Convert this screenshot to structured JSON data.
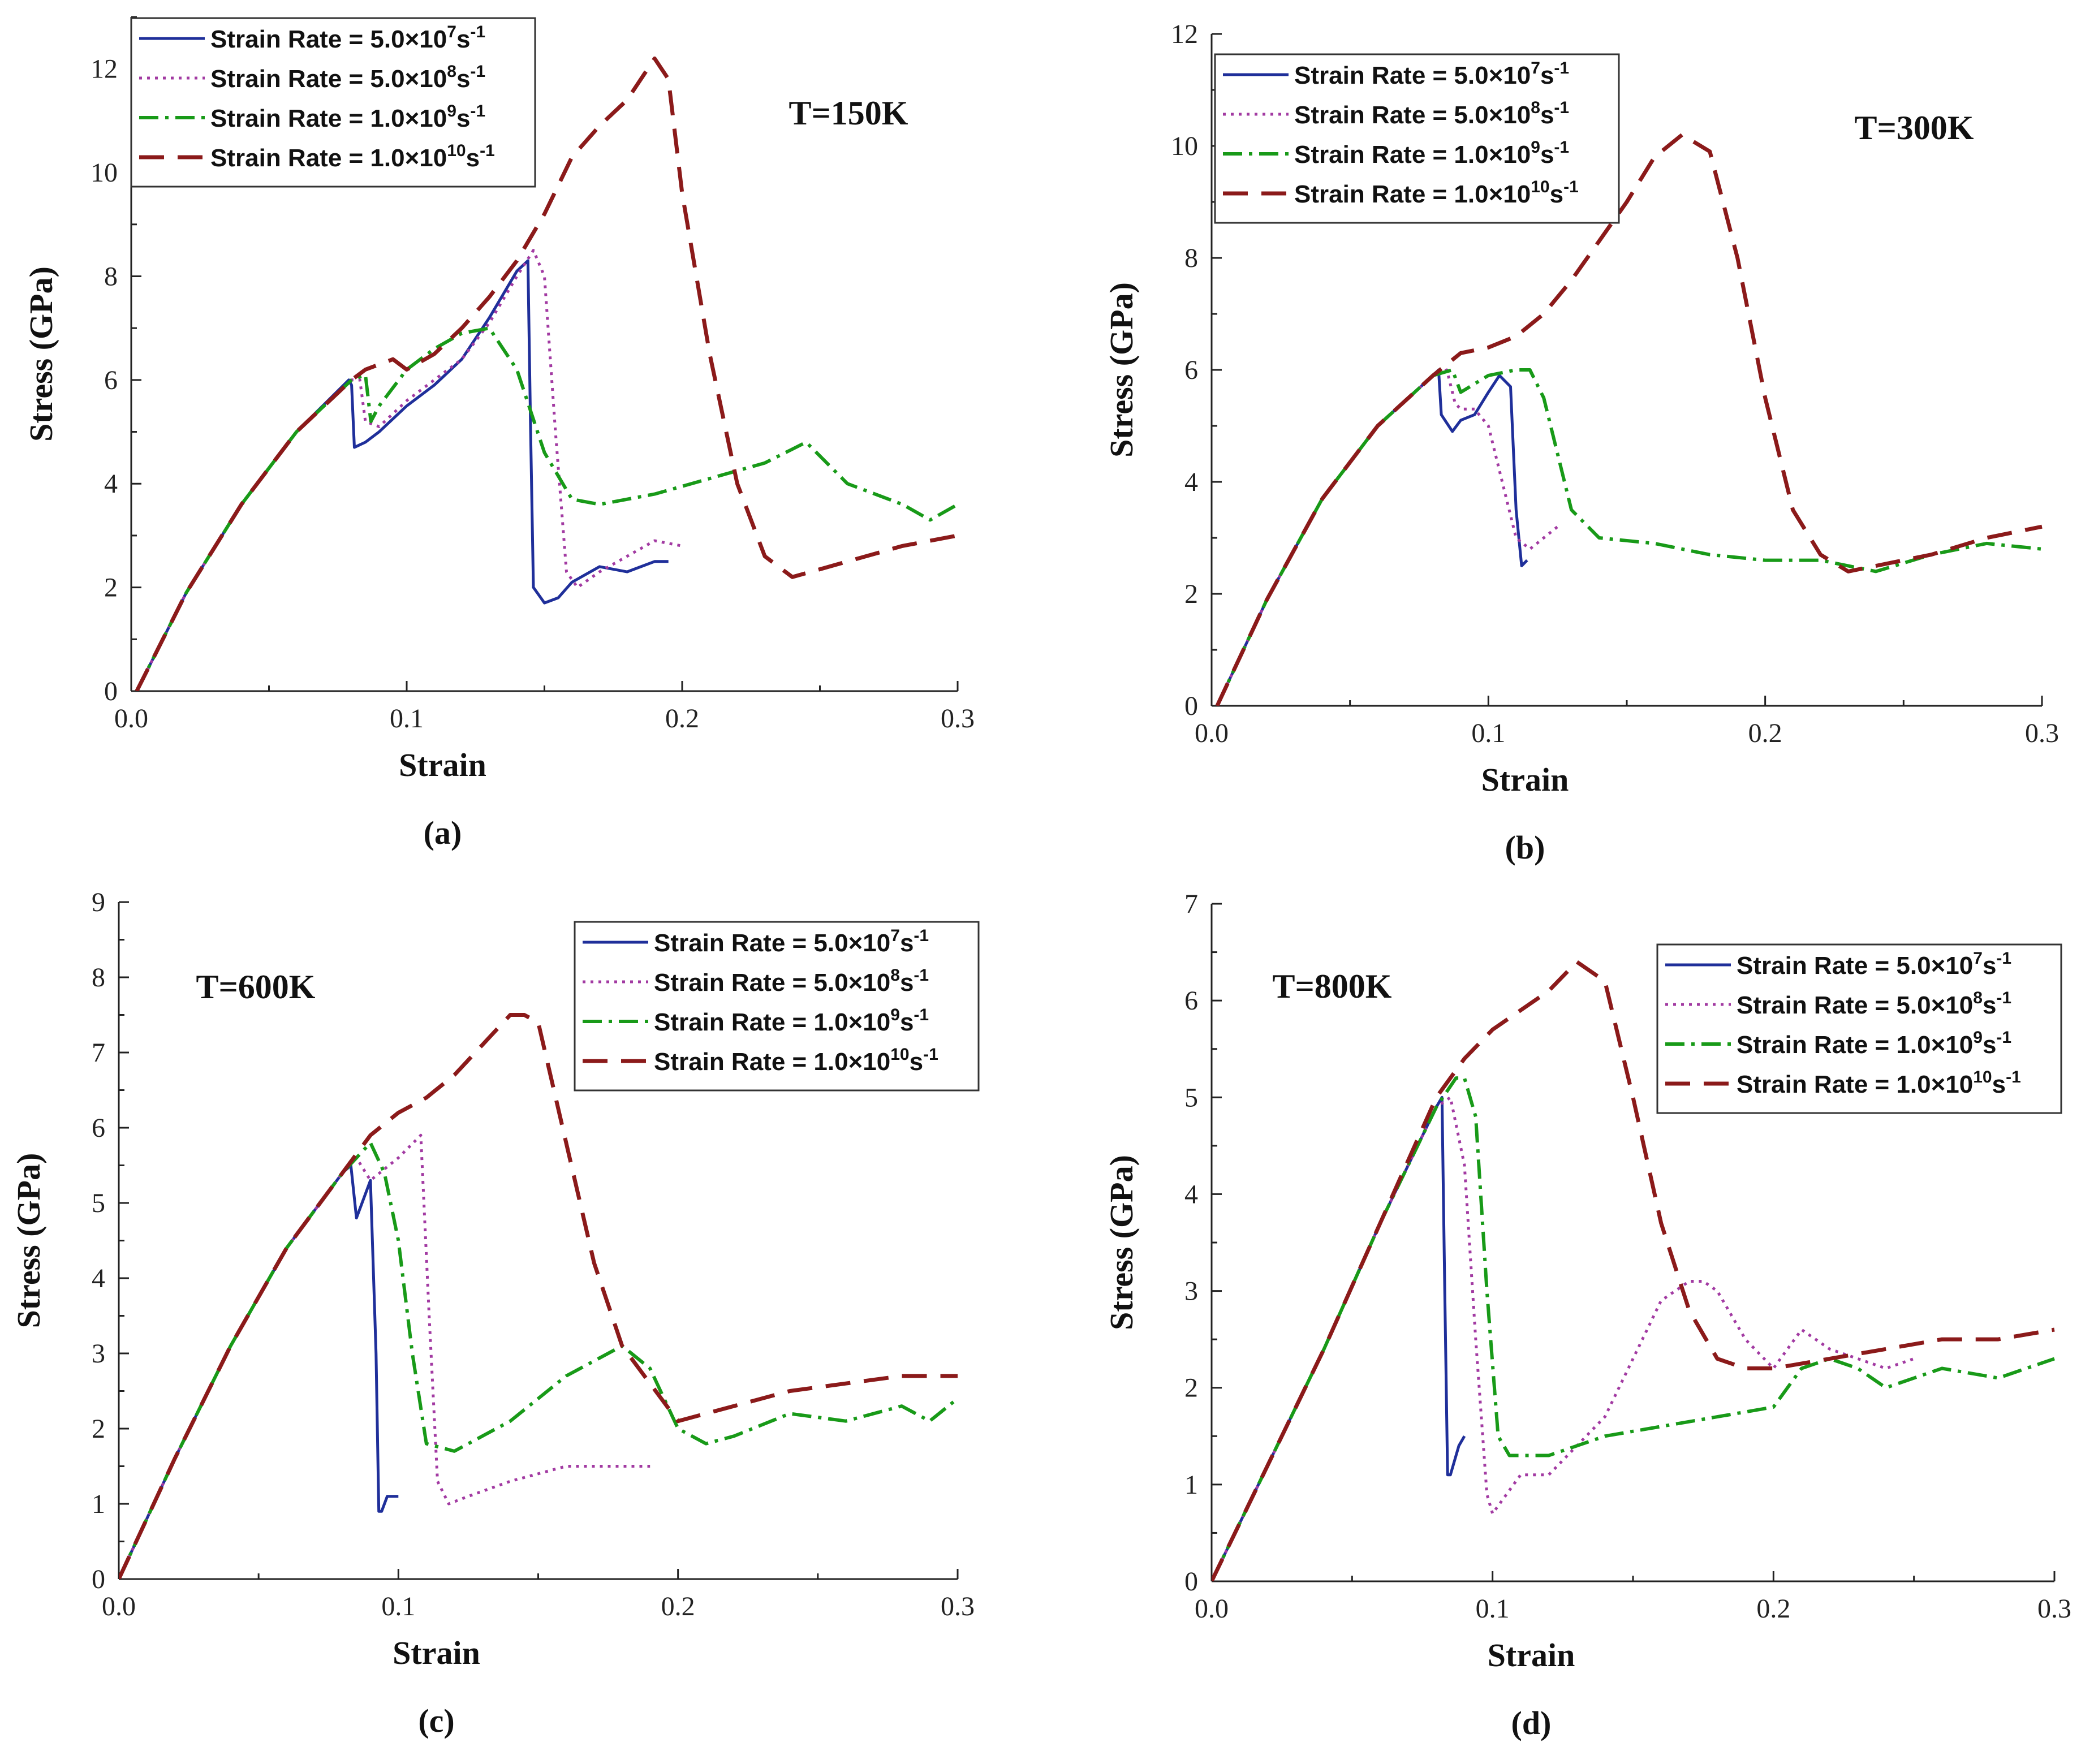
{
  "colors": {
    "r1": "#1f2f9a",
    "r2": "#a23aa2",
    "r3": "#189a18",
    "r4": "#8b1a1a"
  },
  "legend_entries": [
    {
      "prefix": "Strain Rate = 5.0×10",
      "exp": "7",
      "unit": "s",
      "unit_exp": "-1"
    },
    {
      "prefix": "Strain Rate = 5.0×10",
      "exp": "8",
      "unit": "s",
      "unit_exp": "-1"
    },
    {
      "prefix": "Strain Rate = 1.0×10",
      "exp": "9",
      "unit": "s",
      "unit_exp": "-1"
    },
    {
      "prefix": "Strain Rate = 1.0×10",
      "exp": "10",
      "unit": "s",
      "unit_exp": "-1"
    }
  ],
  "chart_data": [
    {
      "type": "line",
      "panel_label": "(a)",
      "temperature_label": "T=150K",
      "xlabel": "Strain",
      "ylabel": "Stress (GPa)",
      "xlim": [
        0.0,
        0.3
      ],
      "ylim": [
        0,
        13
      ],
      "xticks": [
        "0.0",
        "0.1",
        "0.2",
        "0.3"
      ],
      "yticks": [
        "0",
        "2",
        "4",
        "6",
        "8",
        "10",
        "12"
      ],
      "legend_position": "top-left",
      "series": [
        {
          "name": "Strain Rate = 5.0×10⁷s⁻¹",
          "x": [
            0.002,
            0.02,
            0.04,
            0.06,
            0.079,
            0.08,
            0.081,
            0.085,
            0.09,
            0.1,
            0.11,
            0.12,
            0.13,
            0.14,
            0.144,
            0.145,
            0.146,
            0.15,
            0.155,
            0.16,
            0.17,
            0.18,
            0.19,
            0.195
          ],
          "y": [
            0,
            1.9,
            3.6,
            5.0,
            6.0,
            5.9,
            4.7,
            4.8,
            5.0,
            5.5,
            5.9,
            6.4,
            7.2,
            8.1,
            8.3,
            5.0,
            2.0,
            1.7,
            1.8,
            2.1,
            2.4,
            2.3,
            2.5,
            2.5
          ]
        },
        {
          "name": "Strain Rate = 5.0×10⁸s⁻¹",
          "x": [
            0.002,
            0.02,
            0.04,
            0.06,
            0.08,
            0.083,
            0.085,
            0.09,
            0.1,
            0.11,
            0.12,
            0.13,
            0.14,
            0.146,
            0.15,
            0.154,
            0.158,
            0.162,
            0.17,
            0.18,
            0.19,
            0.2
          ],
          "y": [
            0,
            1.9,
            3.6,
            5.0,
            6.0,
            6.0,
            5.2,
            5.1,
            5.6,
            6.0,
            6.4,
            7.1,
            8.0,
            8.5,
            8.0,
            5.0,
            2.3,
            2.0,
            2.3,
            2.6,
            2.9,
            2.8
          ]
        },
        {
          "name": "Strain Rate = 1.0×10⁹s⁻¹",
          "x": [
            0.002,
            0.02,
            0.04,
            0.06,
            0.08,
            0.085,
            0.087,
            0.09,
            0.1,
            0.11,
            0.12,
            0.13,
            0.14,
            0.15,
            0.16,
            0.17,
            0.19,
            0.21,
            0.23,
            0.245,
            0.26,
            0.28,
            0.29,
            0.3
          ],
          "y": [
            0,
            1.9,
            3.6,
            5.0,
            6.0,
            6.1,
            5.2,
            5.5,
            6.2,
            6.6,
            6.9,
            7.0,
            6.2,
            4.6,
            3.7,
            3.6,
            3.8,
            4.1,
            4.4,
            4.8,
            4.0,
            3.6,
            3.3,
            3.6
          ]
        },
        {
          "name": "Strain Rate = 1.0×10¹⁰s⁻¹",
          "x": [
            0.002,
            0.02,
            0.04,
            0.06,
            0.08,
            0.085,
            0.095,
            0.1,
            0.11,
            0.12,
            0.13,
            0.14,
            0.15,
            0.16,
            0.17,
            0.18,
            0.19,
            0.195,
            0.2,
            0.21,
            0.22,
            0.23,
            0.24,
            0.26,
            0.28,
            0.3
          ],
          "y": [
            0,
            1.9,
            3.6,
            5.0,
            6.0,
            6.2,
            6.4,
            6.2,
            6.5,
            7.0,
            7.6,
            8.3,
            9.2,
            10.3,
            10.9,
            11.4,
            12.2,
            11.8,
            9.6,
            6.5,
            4.0,
            2.6,
            2.2,
            2.5,
            2.8,
            3.0
          ]
        }
      ]
    },
    {
      "type": "line",
      "panel_label": "(b)",
      "temperature_label": "T=300K",
      "xlabel": "Strain",
      "ylabel": "Stress (GPa)",
      "xlim": [
        0.0,
        0.3
      ],
      "ylim": [
        0,
        12
      ],
      "xticks": [
        "0.0",
        "0.1",
        "0.2",
        "0.3"
      ],
      "yticks": [
        "0",
        "2",
        "4",
        "6",
        "8",
        "10",
        "12"
      ],
      "legend_position": "top-left",
      "series": [
        {
          "name": "Strain Rate = 5.0×10⁷s⁻¹",
          "x": [
            0.002,
            0.02,
            0.04,
            0.06,
            0.08,
            0.082,
            0.083,
            0.087,
            0.09,
            0.095,
            0.1,
            0.104,
            0.108,
            0.11,
            0.112,
            0.114
          ],
          "y": [
            0,
            1.9,
            3.7,
            5.0,
            5.9,
            6.0,
            5.2,
            4.9,
            5.1,
            5.2,
            5.6,
            5.9,
            5.7,
            3.5,
            2.5,
            2.6
          ]
        },
        {
          "name": "Strain Rate = 5.0×10⁸s⁻¹",
          "x": [
            0.002,
            0.02,
            0.04,
            0.06,
            0.08,
            0.085,
            0.088,
            0.09,
            0.095,
            0.1,
            0.104,
            0.11,
            0.115,
            0.12,
            0.125
          ],
          "y": [
            0,
            1.9,
            3.7,
            5.0,
            5.9,
            6.0,
            5.4,
            5.3,
            5.3,
            5.0,
            4.2,
            3.0,
            2.8,
            3.0,
            3.2
          ]
        },
        {
          "name": "Strain Rate = 1.0×10⁹s⁻¹",
          "x": [
            0.002,
            0.02,
            0.04,
            0.06,
            0.08,
            0.087,
            0.09,
            0.1,
            0.11,
            0.115,
            0.12,
            0.13,
            0.14,
            0.16,
            0.18,
            0.2,
            0.22,
            0.24,
            0.26,
            0.28,
            0.3
          ],
          "y": [
            0,
            1.9,
            3.7,
            5.0,
            5.9,
            6.0,
            5.6,
            5.9,
            6.0,
            6.0,
            5.5,
            3.5,
            3.0,
            2.9,
            2.7,
            2.6,
            2.6,
            2.4,
            2.7,
            2.9,
            2.8
          ]
        },
        {
          "name": "Strain Rate = 1.0×10¹⁰s⁻¹",
          "x": [
            0.002,
            0.02,
            0.04,
            0.06,
            0.08,
            0.09,
            0.1,
            0.11,
            0.12,
            0.13,
            0.14,
            0.15,
            0.16,
            0.17,
            0.18,
            0.19,
            0.2,
            0.21,
            0.22,
            0.23,
            0.24,
            0.26,
            0.28,
            0.3
          ],
          "y": [
            0,
            1.9,
            3.7,
            5.0,
            5.9,
            6.3,
            6.4,
            6.6,
            7.0,
            7.6,
            8.3,
            9.0,
            9.8,
            10.2,
            9.9,
            8.0,
            5.5,
            3.5,
            2.7,
            2.4,
            2.5,
            2.7,
            3.0,
            3.2
          ]
        }
      ]
    },
    {
      "type": "line",
      "panel_label": "(c)",
      "temperature_label": "T=600K",
      "xlabel": "Strain",
      "ylabel": "Stress (GPa)",
      "xlim": [
        0.0,
        0.3
      ],
      "ylim": [
        0,
        9
      ],
      "xticks": [
        "0.0",
        "0.1",
        "0.2",
        "0.3"
      ],
      "yticks": [
        "0",
        "1",
        "2",
        "3",
        "4",
        "5",
        "6",
        "7",
        "8",
        "9"
      ],
      "legend_position": "top-right",
      "series": [
        {
          "name": "Strain Rate = 5.0×10⁷s⁻¹",
          "x": [
            0.0,
            0.02,
            0.04,
            0.06,
            0.08,
            0.083,
            0.085,
            0.09,
            0.092,
            0.093,
            0.094,
            0.096,
            0.1
          ],
          "y": [
            0,
            1.6,
            3.1,
            4.4,
            5.4,
            5.5,
            4.8,
            5.3,
            3.0,
            0.9,
            0.9,
            1.1,
            1.1
          ]
        },
        {
          "name": "Strain Rate = 5.0×10⁸s⁻¹",
          "x": [
            0.0,
            0.02,
            0.04,
            0.06,
            0.08,
            0.085,
            0.09,
            0.1,
            0.108,
            0.111,
            0.114,
            0.118,
            0.125,
            0.14,
            0.16,
            0.18,
            0.19
          ],
          "y": [
            0,
            1.6,
            3.1,
            4.4,
            5.4,
            5.6,
            5.3,
            5.6,
            5.9,
            3.5,
            1.3,
            1.0,
            1.1,
            1.3,
            1.5,
            1.5,
            1.5
          ]
        },
        {
          "name": "Strain Rate = 1.0×10⁹s⁻¹",
          "x": [
            0.0,
            0.02,
            0.04,
            0.06,
            0.08,
            0.09,
            0.095,
            0.1,
            0.105,
            0.11,
            0.12,
            0.13,
            0.14,
            0.15,
            0.16,
            0.17,
            0.18,
            0.19,
            0.2,
            0.21,
            0.22,
            0.24,
            0.26,
            0.28,
            0.29,
            0.3
          ],
          "y": [
            0,
            1.6,
            3.1,
            4.4,
            5.4,
            5.8,
            5.4,
            4.5,
            3.0,
            1.8,
            1.7,
            1.9,
            2.1,
            2.4,
            2.7,
            2.9,
            3.1,
            2.8,
            2.0,
            1.8,
            1.9,
            2.2,
            2.1,
            2.3,
            2.1,
            2.4
          ]
        },
        {
          "name": "Strain Rate = 1.0×10¹⁰s⁻¹",
          "x": [
            0.0,
            0.02,
            0.04,
            0.06,
            0.08,
            0.09,
            0.1,
            0.11,
            0.12,
            0.13,
            0.14,
            0.145,
            0.15,
            0.16,
            0.17,
            0.18,
            0.19,
            0.2,
            0.22,
            0.24,
            0.26,
            0.28,
            0.3
          ],
          "y": [
            0,
            1.6,
            3.1,
            4.4,
            5.4,
            5.9,
            6.2,
            6.4,
            6.7,
            7.1,
            7.5,
            7.5,
            7.4,
            5.8,
            4.2,
            3.1,
            2.6,
            2.1,
            2.3,
            2.5,
            2.6,
            2.7,
            2.7
          ]
        }
      ]
    },
    {
      "type": "line",
      "panel_label": "(d)",
      "temperature_label": "T=800K",
      "xlabel": "Strain",
      "ylabel": "Stress (GPa)",
      "xlim": [
        0.0,
        0.3
      ],
      "ylim": [
        0,
        7
      ],
      "xticks": [
        "0.0",
        "0.1",
        "0.2",
        "0.3"
      ],
      "yticks": [
        "0",
        "1",
        "2",
        "3",
        "4",
        "5",
        "6",
        "7"
      ],
      "legend_position": "top-right",
      "series": [
        {
          "name": "Strain Rate = 5.0×10⁷s⁻¹",
          "x": [
            0.0,
            0.02,
            0.04,
            0.06,
            0.08,
            0.082,
            0.083,
            0.084,
            0.085,
            0.088,
            0.09
          ],
          "y": [
            0,
            1.2,
            2.4,
            3.7,
            4.9,
            5.0,
            3.0,
            1.1,
            1.1,
            1.4,
            1.5
          ]
        },
        {
          "name": "Strain Rate = 5.0×10⁸s⁻¹",
          "x": [
            0.0,
            0.02,
            0.04,
            0.06,
            0.08,
            0.085,
            0.09,
            0.094,
            0.098,
            0.1,
            0.105,
            0.11,
            0.12,
            0.13,
            0.14,
            0.15,
            0.16,
            0.17,
            0.175,
            0.18,
            0.19,
            0.2,
            0.21,
            0.22,
            0.23,
            0.24,
            0.25
          ],
          "y": [
            0,
            1.2,
            2.4,
            3.7,
            4.9,
            5.0,
            4.3,
            2.5,
            0.9,
            0.7,
            0.9,
            1.1,
            1.1,
            1.4,
            1.7,
            2.3,
            2.9,
            3.1,
            3.1,
            3.0,
            2.5,
            2.2,
            2.6,
            2.4,
            2.3,
            2.2,
            2.3
          ]
        },
        {
          "name": "Strain Rate = 1.0×10⁹s⁻¹",
          "x": [
            0.0,
            0.02,
            0.04,
            0.06,
            0.08,
            0.087,
            0.09,
            0.094,
            0.098,
            0.102,
            0.106,
            0.11,
            0.12,
            0.13,
            0.14,
            0.16,
            0.18,
            0.2,
            0.21,
            0.22,
            0.23,
            0.24,
            0.26,
            0.28,
            0.29,
            0.3
          ],
          "y": [
            0,
            1.2,
            2.4,
            3.7,
            4.9,
            5.2,
            5.2,
            4.8,
            3.0,
            1.5,
            1.3,
            1.3,
            1.3,
            1.4,
            1.5,
            1.6,
            1.7,
            1.8,
            2.2,
            2.3,
            2.2,
            2.0,
            2.2,
            2.1,
            2.2,
            2.3
          ]
        },
        {
          "name": "Strain Rate = 1.0×10¹⁰s⁻¹",
          "x": [
            0.0,
            0.02,
            0.04,
            0.06,
            0.08,
            0.09,
            0.1,
            0.11,
            0.12,
            0.13,
            0.14,
            0.15,
            0.16,
            0.17,
            0.18,
            0.19,
            0.2,
            0.22,
            0.24,
            0.26,
            0.28,
            0.3
          ],
          "y": [
            0,
            1.2,
            2.4,
            3.7,
            5.0,
            5.4,
            5.7,
            5.9,
            6.1,
            6.4,
            6.2,
            5.0,
            3.7,
            2.8,
            2.3,
            2.2,
            2.2,
            2.3,
            2.4,
            2.5,
            2.5,
            2.6
          ]
        }
      ]
    }
  ]
}
